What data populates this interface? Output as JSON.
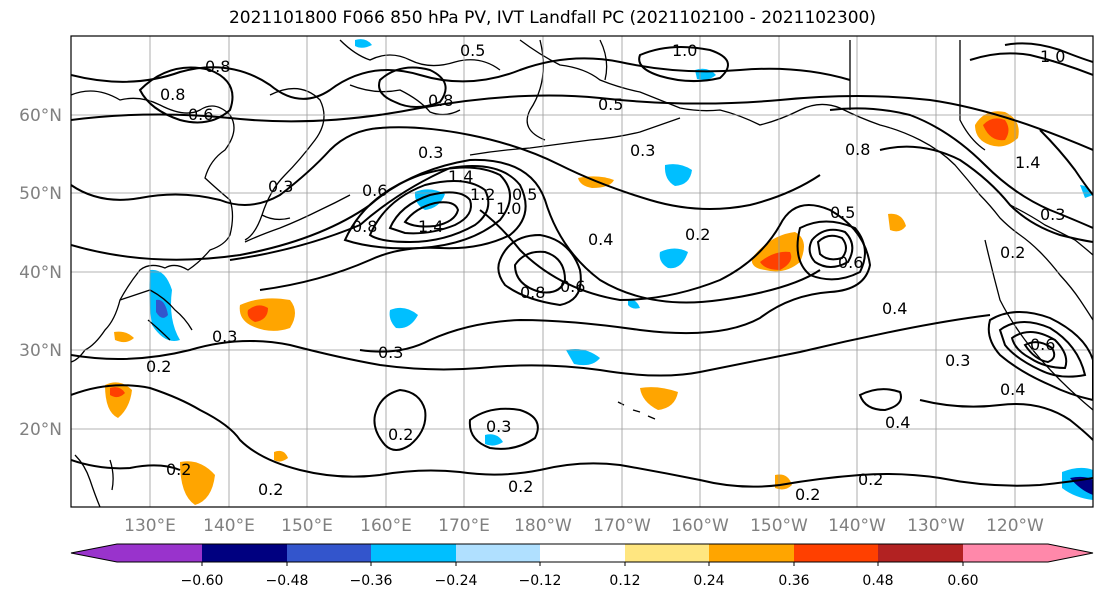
{
  "title": "2021101800 F066 850 hPa PV, IVT Landfall PC (2021102100 - 2021102300)",
  "axes": {
    "lat_labels": [
      "60°N",
      "50°N",
      "40°N",
      "30°N",
      "20°N"
    ],
    "lon_labels": [
      "130°E",
      "140°E",
      "150°E",
      "160°E",
      "170°E",
      "180°W",
      "170°W",
      "160°W",
      "150°W",
      "140°W",
      "130°W",
      "120°W"
    ]
  },
  "contour_labels": [
    "0.8",
    "0.6",
    "0.5",
    "1.0",
    "0.8",
    "0.5",
    "0.3",
    "0.8",
    "1.4",
    "0.6",
    "0.8",
    "1.4",
    "1.2",
    "1.0",
    "0.5",
    "0.3",
    "0.4",
    "0.2",
    "0.5",
    "0.6",
    "0.8",
    "0.6",
    "0.4",
    "0.3",
    "0.3",
    "0.2",
    "0.3",
    "0.2",
    "0.2",
    "0.3",
    "0.4",
    "0.3",
    "0.2",
    "0.2",
    "0.2",
    "0.2",
    "0.8",
    "0.3",
    "0.2",
    "1.0",
    "1.4",
    "0.6",
    "0.4"
  ],
  "colorbar": {
    "ticks": [
      "−0.60",
      "−0.48",
      "−0.36",
      "−0.24",
      "−0.12",
      "0.12",
      "0.24",
      "0.36",
      "0.48",
      "0.60"
    ],
    "colors": [
      "#9933cc",
      "#000080",
      "#3355cc",
      "#00bfff",
      "#b0e0ff",
      "#ffffff",
      "#ffe680",
      "#ffa500",
      "#ff4000",
      "#b22222",
      "#ff88aa"
    ]
  }
}
